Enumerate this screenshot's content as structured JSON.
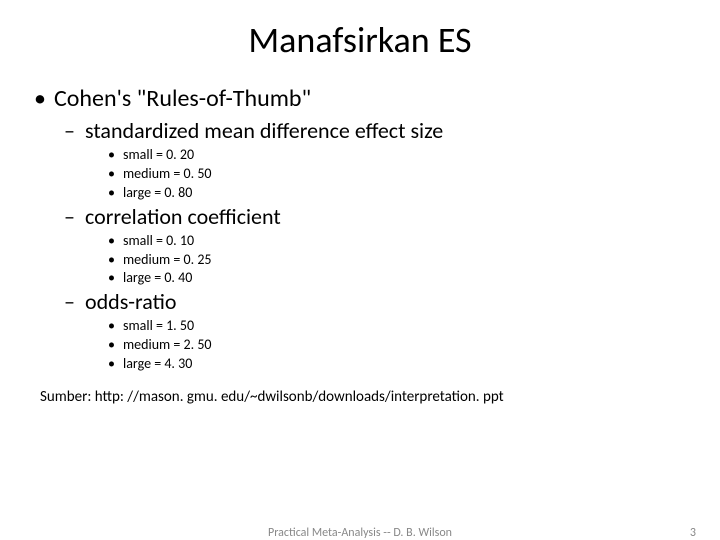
{
  "title": "Manafsirkan ES",
  "level1": "Cohen's \"Rules-of-Thumb\"",
  "sections": [
    {
      "heading": "standardized mean difference effect size",
      "items": [
        "small = 0. 20",
        "medium = 0. 50",
        "large = 0. 80"
      ]
    },
    {
      "heading": "correlation coefficient",
      "items": [
        "small = 0. 10",
        "medium = 0. 25",
        "large = 0. 40"
      ]
    },
    {
      "heading": "odds-ratio",
      "items": [
        "small = 1. 50",
        "medium = 2. 50",
        "large = 4. 30"
      ]
    }
  ],
  "source_label": "Sumber: ",
  "source_link": "http: //mason. gmu. edu/~dwilsonb/downloads/interpretation. ppt",
  "footer_center": "Practical Meta-Analysis -- D. B. Wilson",
  "footer_page": "3",
  "colors": {
    "text": "#000000",
    "footer": "#888888",
    "background": "#ffffff"
  },
  "fonts": {
    "title_size": 36,
    "level1_size": 24,
    "level2_size": 22,
    "level3_size": 14,
    "source_size": 15,
    "footer_size": 12
  }
}
